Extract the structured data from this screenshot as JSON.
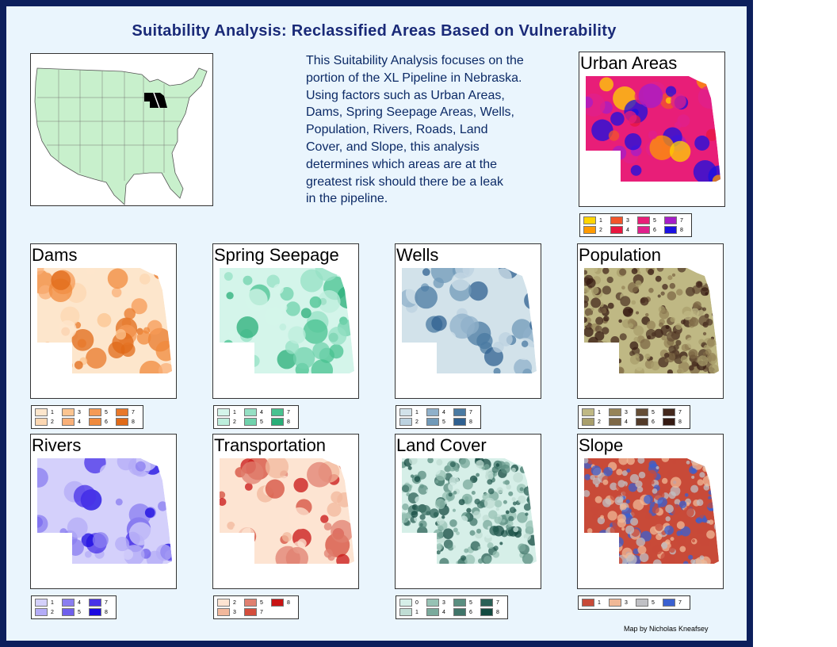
{
  "title": "Suitability Analysis: Reclassified Areas Based on Vulnerability",
  "description": [
    "This Suitability Analysis focuses on the",
    "portion of the  XL Pipeline in Nebraska.",
    "Using factors such as Urban Areas,",
    "Dams, Spring Seepage Areas, Wells,",
    "Population, Rivers, Roads, Land",
    "Cover, and Slope, this analysis",
    "determines which areas are at the",
    "greatest risk should there be a leak",
    "in the pipeline."
  ],
  "credit": "Map by Nicholas Kneafsey",
  "panels": [
    {
      "title": "Urban Areas",
      "legend": [
        [
          {
            "label": 1,
            "color": "#ffd400"
          },
          {
            "label": 2,
            "color": "#ff9a00"
          }
        ],
        [
          {
            "label": 3,
            "color": "#f2552a"
          },
          {
            "label": 4,
            "color": "#e8173f"
          }
        ],
        [
          {
            "label": 5,
            "color": "#e81e78"
          },
          {
            "label": 6,
            "color": "#e0208c"
          }
        ],
        [
          {
            "label": 7,
            "color": "#a51ec8"
          },
          {
            "label": 8,
            "color": "#1a10e0"
          }
        ]
      ]
    },
    {
      "title": "Dams",
      "legend": [
        [
          {
            "label": 1,
            "color": "#fde6cc"
          },
          {
            "label": 2,
            "color": "#fcd7b2"
          }
        ],
        [
          {
            "label": 3,
            "color": "#fbc490"
          },
          {
            "label": 4,
            "color": "#f9b078"
          }
        ],
        [
          {
            "label": 5,
            "color": "#f59a55"
          },
          {
            "label": 6,
            "color": "#f08a3c"
          }
        ],
        [
          {
            "label": 7,
            "color": "#e8782a"
          },
          {
            "label": 8,
            "color": "#e06a18"
          }
        ]
      ]
    },
    {
      "title": "Spring Seepage",
      "legend": [
        [
          {
            "label": 1,
            "color": "#d4f5ea"
          },
          {
            "label": 2,
            "color": "#bdeedc"
          }
        ],
        [
          {
            "label": 4,
            "color": "#95e0c4"
          },
          {
            "label": 5,
            "color": "#70d2ac"
          }
        ],
        [
          {
            "label": 7,
            "color": "#48c290"
          },
          {
            "label": 8,
            "color": "#2aae78"
          }
        ]
      ]
    },
    {
      "title": "Wells",
      "legend": [
        [
          {
            "label": 1,
            "color": "#d2e2ea"
          },
          {
            "label": 2,
            "color": "#bcd2e0"
          }
        ],
        [
          {
            "label": 4,
            "color": "#8fb0ca"
          },
          {
            "label": 5,
            "color": "#7099b8"
          }
        ],
        [
          {
            "label": 7,
            "color": "#4a7aa2"
          },
          {
            "label": 8,
            "color": "#2f6090"
          }
        ]
      ]
    },
    {
      "title": "Population",
      "legend": [
        [
          {
            "label": 1,
            "color": "#bfb884"
          },
          {
            "label": 2,
            "color": "#a99f6c"
          }
        ],
        [
          {
            "label": 3,
            "color": "#968458"
          },
          {
            "label": 4,
            "color": "#7e6846"
          }
        ],
        [
          {
            "label": 5,
            "color": "#664e36"
          },
          {
            "label": 6,
            "color": "#523a28"
          }
        ],
        [
          {
            "label": 7,
            "color": "#44281c"
          },
          {
            "label": 8,
            "color": "#351a12"
          }
        ]
      ]
    },
    {
      "title": "Rivers",
      "legend": [
        [
          {
            "label": 1,
            "color": "#d4d0fb"
          },
          {
            "label": 2,
            "color": "#b4acf7"
          }
        ],
        [
          {
            "label": 4,
            "color": "#8a7ef0"
          },
          {
            "label": 5,
            "color": "#6f5fec"
          }
        ],
        [
          {
            "label": 7,
            "color": "#4832e8"
          },
          {
            "label": 8,
            "color": "#1a08e0"
          }
        ]
      ]
    },
    {
      "title": "Transportation",
      "legend": [
        [
          {
            "label": 2,
            "color": "#fde4d2"
          },
          {
            "label": 3,
            "color": "#f2b89c"
          }
        ],
        [
          {
            "label": 5,
            "color": "#e08070"
          },
          {
            "label": 7,
            "color": "#d44d3c"
          }
        ],
        [
          {
            "label": 8,
            "color": "#c81414"
          }
        ]
      ]
    },
    {
      "title": "Land Cover",
      "legend": [
        [
          {
            "label": 0,
            "color": "#d6efe8"
          },
          {
            "label": 1,
            "color": "#c0ddd4"
          }
        ],
        [
          {
            "label": 3,
            "color": "#97c2b4"
          },
          {
            "label": 4,
            "color": "#7aaa9c"
          }
        ],
        [
          {
            "label": 5,
            "color": "#5a8e80"
          },
          {
            "label": 6,
            "color": "#3f7468"
          }
        ],
        [
          {
            "label": 7,
            "color": "#2a6056"
          },
          {
            "label": 8,
            "color": "#134a40"
          }
        ]
      ]
    },
    {
      "title": "Slope",
      "legend": [
        [
          {
            "label": 1,
            "color": "#c84a38"
          }
        ],
        [
          {
            "label": 3,
            "color": "#f0b896"
          }
        ],
        [
          {
            "label": 5,
            "color": "#c0c0c4"
          }
        ],
        [
          {
            "label": 7,
            "color": "#3a60d0"
          }
        ]
      ]
    }
  ]
}
